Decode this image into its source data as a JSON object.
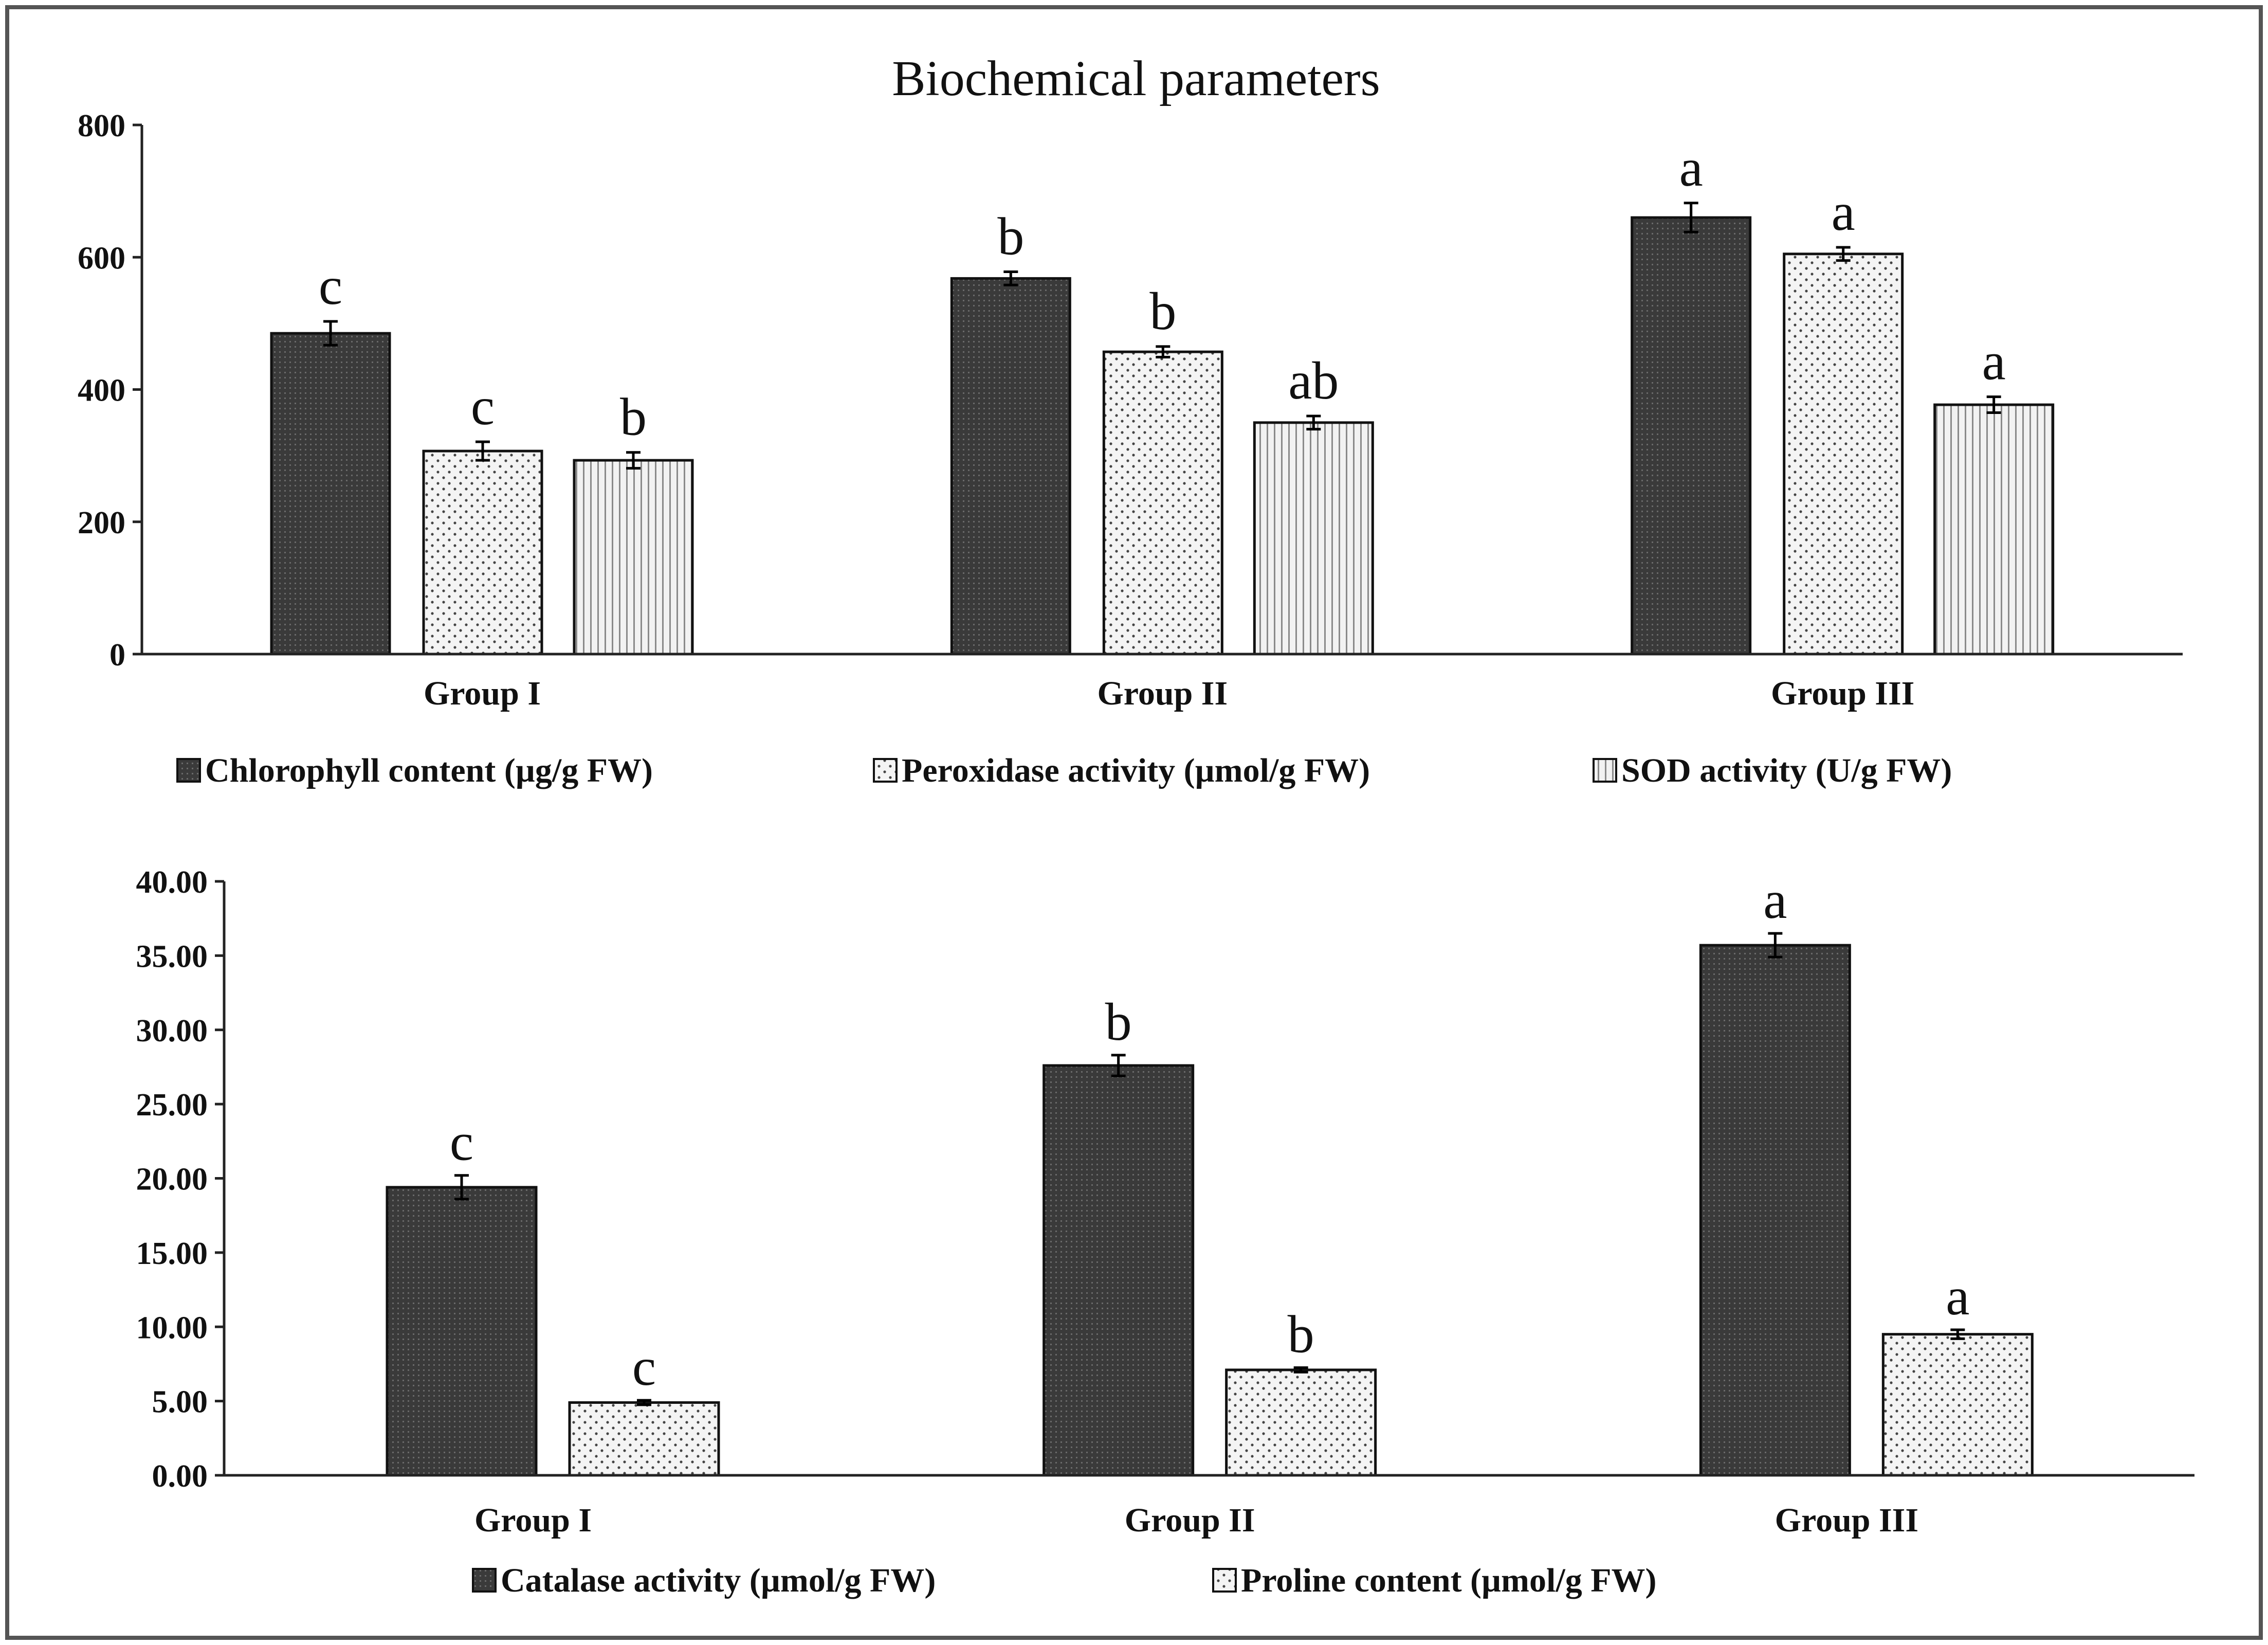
{
  "chart_data": [
    {
      "type": "bar",
      "title": "Biochemical parameters",
      "xlabel": "",
      "ylabel": "",
      "ylim": [
        0,
        800
      ],
      "yticks": [
        "0",
        "200",
        "400",
        "600",
        "800"
      ],
      "categories": [
        "Group I",
        "Group II",
        "Group III"
      ],
      "legend_position": "bottom",
      "series": [
        {
          "name": "Chlorophyll content (µg/g FW)",
          "pattern": "dark",
          "values": [
            485,
            568,
            660
          ],
          "errors": [
            18,
            10,
            22
          ],
          "labels": [
            "c",
            "b",
            "a"
          ]
        },
        {
          "name": "Peroxidase activity (µmol/g FW)",
          "pattern": "dots",
          "values": [
            307,
            457,
            605
          ],
          "errors": [
            14,
            8,
            10
          ],
          "labels": [
            "c",
            "b",
            "a"
          ]
        },
        {
          "name": "SOD activity   (U/g FW)",
          "pattern": "stripes",
          "values": [
            293,
            350,
            377
          ],
          "errors": [
            12,
            10,
            12
          ],
          "labels": [
            "b",
            "ab",
            "a"
          ]
        }
      ]
    },
    {
      "type": "bar",
      "title": "",
      "xlabel": "",
      "ylabel": "",
      "ylim": [
        0,
        40
      ],
      "yticks": [
        "0.00",
        "5.00",
        "10.00",
        "15.00",
        "20.00",
        "25.00",
        "30.00",
        "35.00",
        "40.00"
      ],
      "categories": [
        "Group I",
        "Group II",
        "Group III"
      ],
      "legend_position": "bottom",
      "series": [
        {
          "name": "Catalase activity (µmol/g FW)",
          "pattern": "dark",
          "values": [
            19.4,
            27.6,
            35.7
          ],
          "errors": [
            0.8,
            0.7,
            0.8
          ],
          "labels": [
            "c",
            "b",
            "a"
          ]
        },
        {
          "name": "Proline content (µmol/g FW)",
          "pattern": "dots",
          "values": [
            4.9,
            7.1,
            9.5
          ],
          "errors": [
            0.15,
            0.15,
            0.3
          ],
          "labels": [
            "c",
            "b",
            "a"
          ]
        }
      ]
    }
  ],
  "colors": {
    "frame": "#555555",
    "axis": "#222222",
    "bar_dark": "#3a3a3a",
    "bar_light": "#f4f4f4"
  }
}
